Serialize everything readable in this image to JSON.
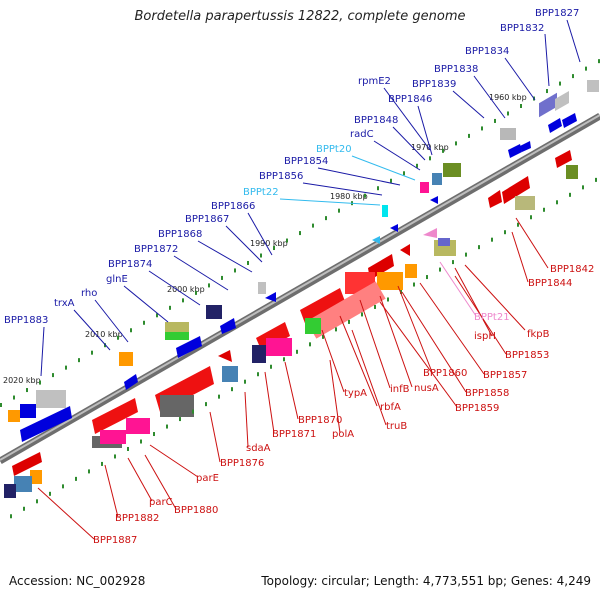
{
  "title": "Bordetella parapertussis 12822, complete genome",
  "footer": {
    "accession": "Accession: NC_002928",
    "stats": "Topology: circular; Length: 4,773,551 bp; Genes: 4,249"
  },
  "colors": {
    "backbone": "#808080",
    "label_blue": "#1a1aa6",
    "label_red": "#cc1111",
    "label_cyan": "#33bbee",
    "label_pink": "#ee88cc",
    "tick_green": "#2e8b2e"
  },
  "scale_ticks": [
    "1960 kbp",
    "1970 kbp",
    "1980 kbp",
    "1990 kbp",
    "2000 kbp",
    "2010 kbp",
    "2020 kbp"
  ],
  "labels_top": [
    "BPP1827",
    "BPP1832",
    "BPP1834",
    "BPP1838",
    "BPP1839",
    "rpmE2",
    "BPP1846",
    "BPP1848",
    "radC",
    "BPPt20",
    "BPP1854",
    "BPP1856",
    "BPPt22",
    "BPP1866",
    "BPP1867",
    "BPP1868",
    "BPP1872",
    "BPP1874",
    "glnE",
    "rho",
    "trxA",
    "BPP1883"
  ],
  "labels_bottom": [
    "BPP1842",
    "BPP1844",
    "fkpB",
    "BPPt21",
    "ispH",
    "BPP1853",
    "BPP1857",
    "BPP1858",
    "BPP1859",
    "BPP1860",
    "nusA",
    "infB",
    "rbfA",
    "truB",
    "typA",
    "polA",
    "BPP1870",
    "BPP1871",
    "sdaA",
    "BPP1876",
    "parE",
    "BPP1880",
    "parC",
    "BPP1882",
    "BPP1887"
  ]
}
